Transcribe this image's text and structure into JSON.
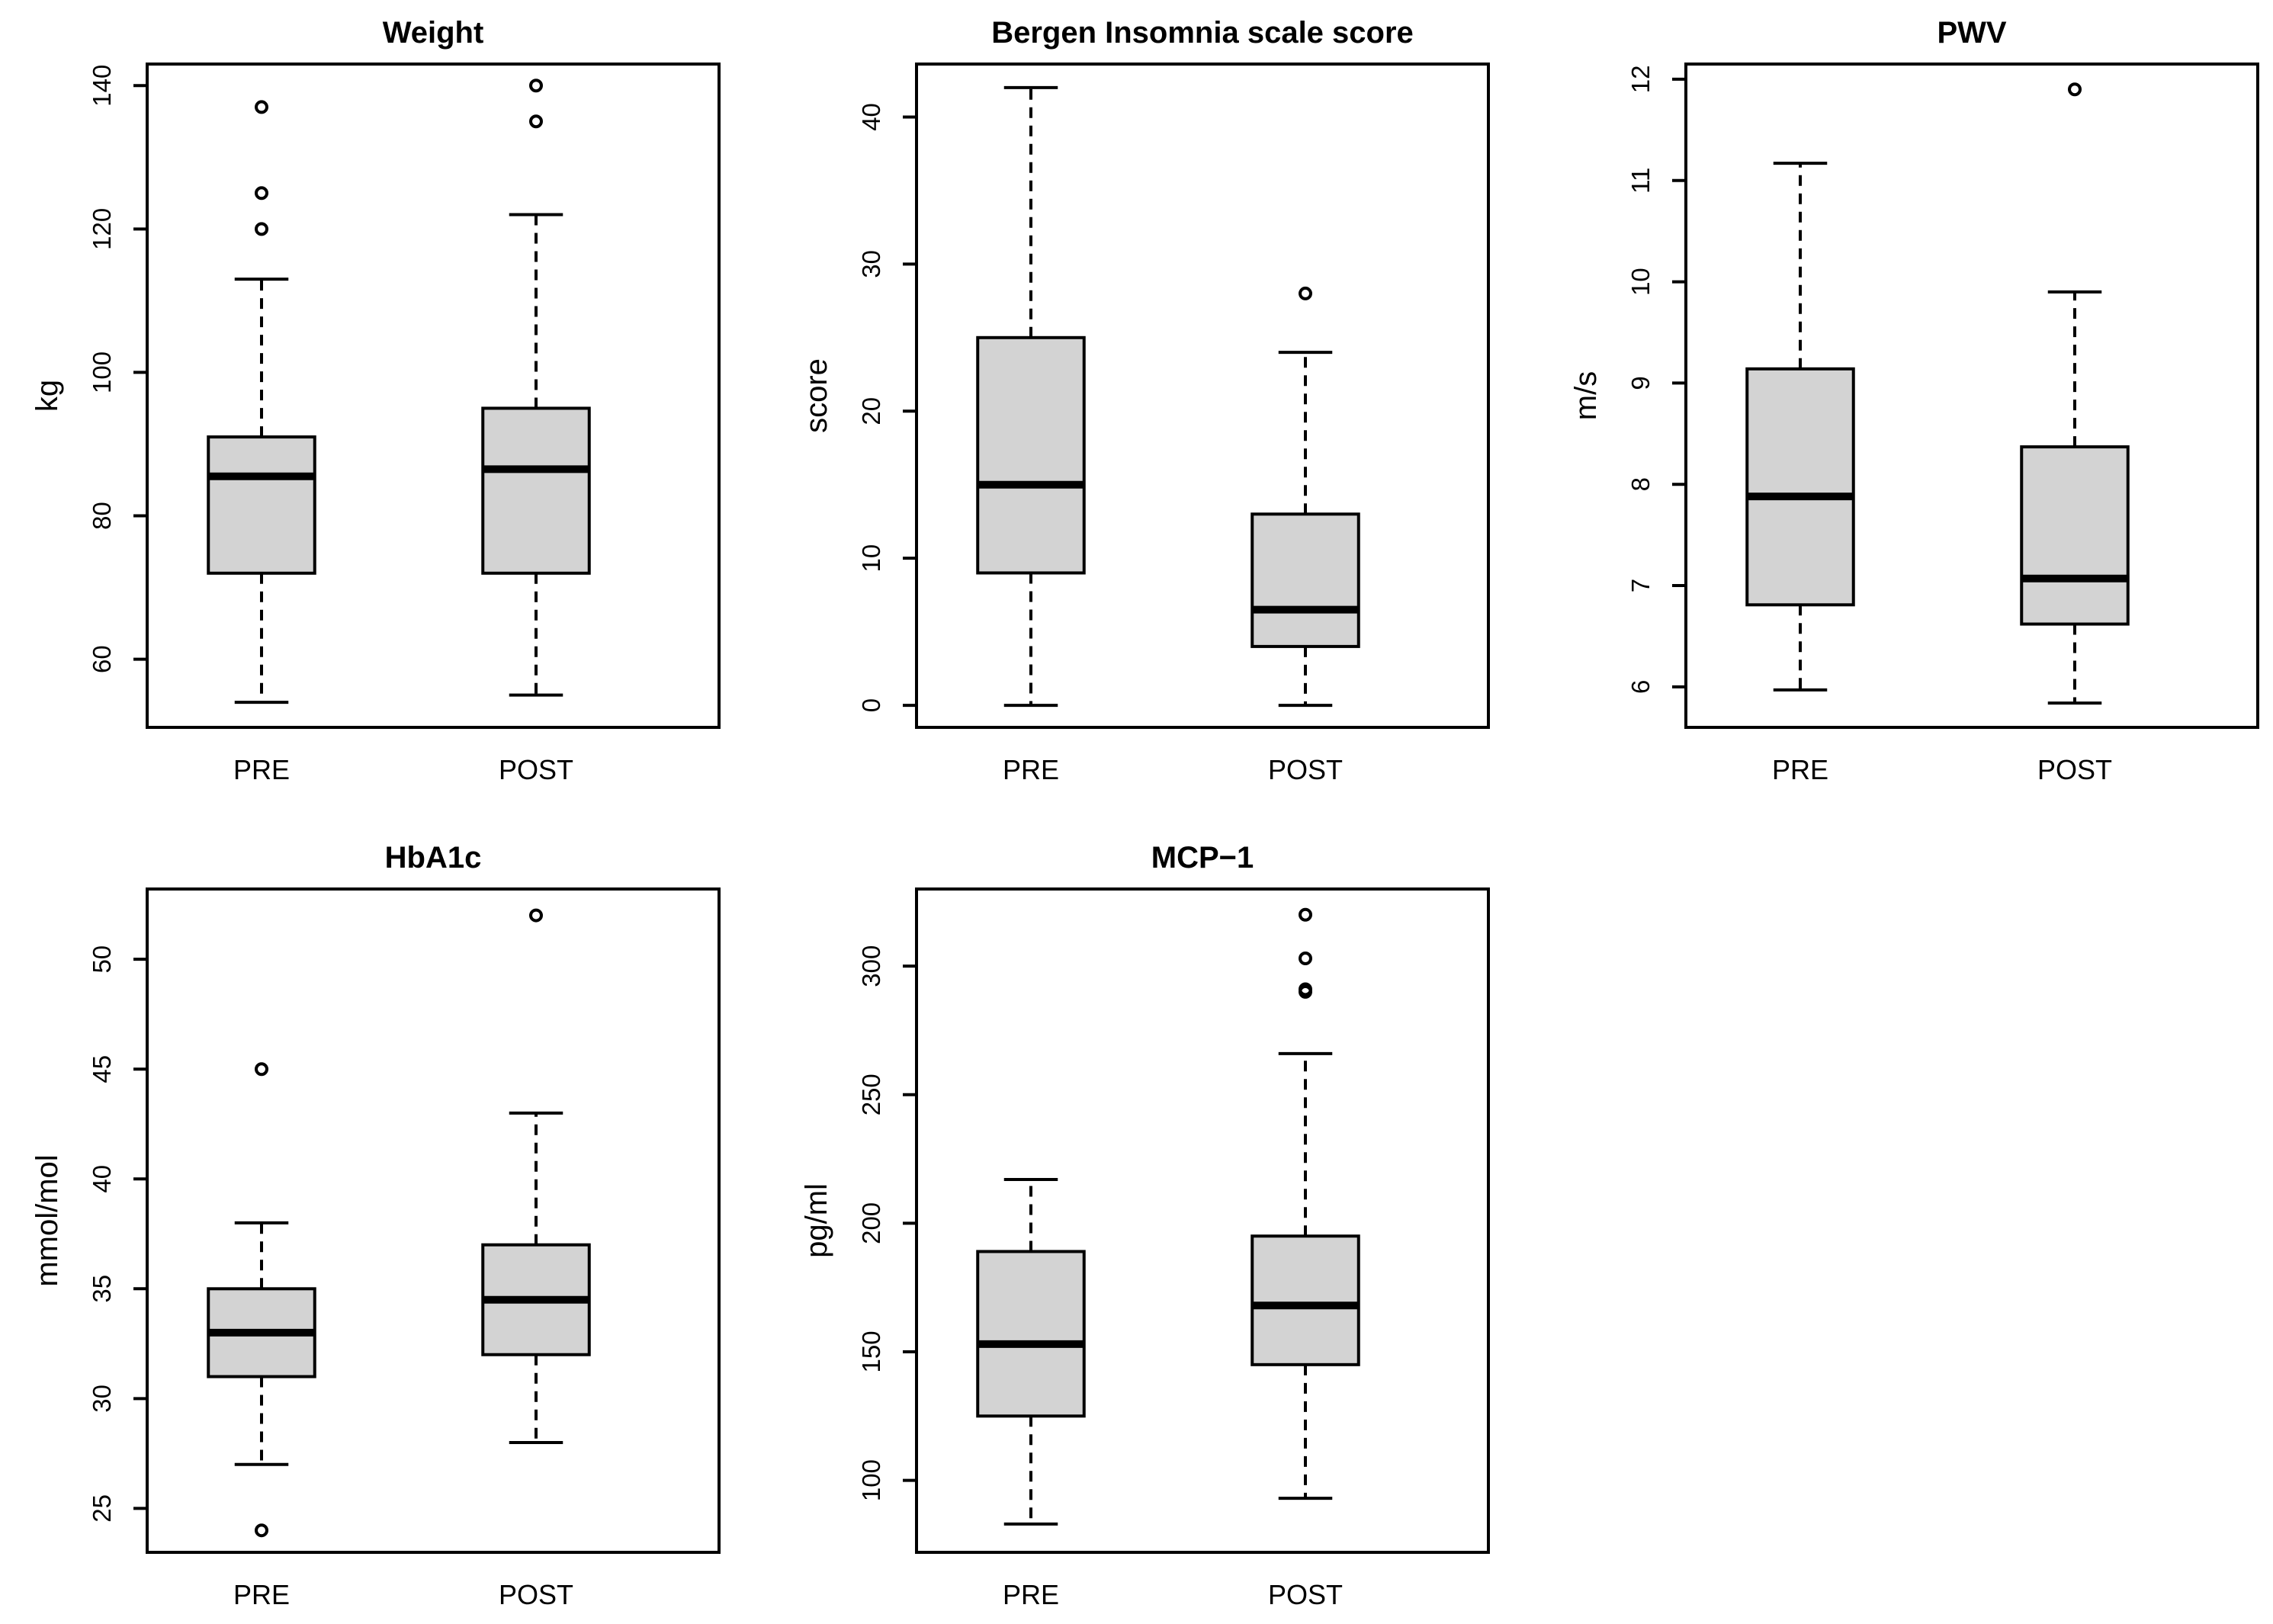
{
  "figure_colors": {
    "box_fill": "#d3d3d3",
    "line": "#000000",
    "background": "#ffffff"
  },
  "chart_data": [
    {
      "id": "weight",
      "type": "boxplot",
      "title": "Weight",
      "ylabel": "kg",
      "categories": [
        "PRE",
        "POST"
      ],
      "ylim": [
        50.5,
        143
      ],
      "yticks": [
        60,
        80,
        100,
        120,
        140
      ],
      "boxes": [
        {
          "name": "PRE",
          "whisker_low": 54,
          "q1": 72,
          "median": 85.5,
          "q3": 91,
          "whisker_high": 113,
          "outliers": [
            120,
            125,
            137
          ]
        },
        {
          "name": "POST",
          "whisker_low": 55,
          "q1": 72,
          "median": 86.5,
          "q3": 95,
          "whisker_high": 122,
          "outliers": [
            135,
            140
          ]
        }
      ]
    },
    {
      "id": "bergen",
      "type": "boxplot",
      "title": "Bergen Insomnia scale score",
      "ylabel": "score",
      "categories": [
        "PRE",
        "POST"
      ],
      "ylim": [
        -1.5,
        43.6
      ],
      "yticks": [
        0,
        10,
        20,
        30,
        40
      ],
      "boxes": [
        {
          "name": "PRE",
          "whisker_low": 0,
          "q1": 9,
          "median": 15,
          "q3": 25,
          "whisker_high": 42,
          "outliers": []
        },
        {
          "name": "POST",
          "whisker_low": 0,
          "q1": 4,
          "median": 6.5,
          "q3": 13,
          "whisker_high": 24,
          "outliers": [
            28
          ]
        }
      ]
    },
    {
      "id": "pwv",
      "type": "boxplot",
      "title": "PWV",
      "ylabel": "m/s",
      "categories": [
        "PRE",
        "POST"
      ],
      "ylim": [
        5.6,
        12.15
      ],
      "yticks": [
        6,
        7,
        8,
        9,
        10,
        11,
        12
      ],
      "boxes": [
        {
          "name": "PRE",
          "whisker_low": 5.97,
          "q1": 6.81,
          "median": 7.88,
          "q3": 9.14,
          "whisker_high": 11.17,
          "outliers": []
        },
        {
          "name": "POST",
          "whisker_low": 5.84,
          "q1": 6.62,
          "median": 7.07,
          "q3": 8.37,
          "whisker_high": 9.9,
          "outliers": [
            11.9
          ]
        }
      ]
    },
    {
      "id": "hba1c",
      "type": "boxplot",
      "title": "HbA1c",
      "ylabel": "mmol/mol",
      "categories": [
        "PRE",
        "POST"
      ],
      "ylim": [
        23,
        53.2
      ],
      "yticks": [
        25,
        30,
        35,
        40,
        45,
        50
      ],
      "boxes": [
        {
          "name": "PRE",
          "whisker_low": 27,
          "q1": 31,
          "median": 33,
          "q3": 35,
          "whisker_high": 38,
          "outliers": [
            24,
            45
          ]
        },
        {
          "name": "POST",
          "whisker_low": 28,
          "q1": 32,
          "median": 34.5,
          "q3": 37,
          "whisker_high": 43,
          "outliers": [
            52
          ]
        }
      ]
    },
    {
      "id": "mcp1",
      "type": "boxplot",
      "title": "MCP−1",
      "ylabel": "pg/ml",
      "categories": [
        "PRE",
        "POST"
      ],
      "ylim": [
        72,
        330
      ],
      "yticks": [
        100,
        150,
        200,
        250,
        300
      ],
      "boxes": [
        {
          "name": "PRE",
          "whisker_low": 83,
          "q1": 125,
          "median": 153,
          "q3": 189,
          "whisker_high": 217,
          "outliers": []
        },
        {
          "name": "POST",
          "whisker_low": 93,
          "q1": 145,
          "median": 168,
          "q3": 195,
          "whisker_high": 266,
          "outliers": [
            290,
            291,
            303,
            320
          ]
        }
      ]
    }
  ]
}
